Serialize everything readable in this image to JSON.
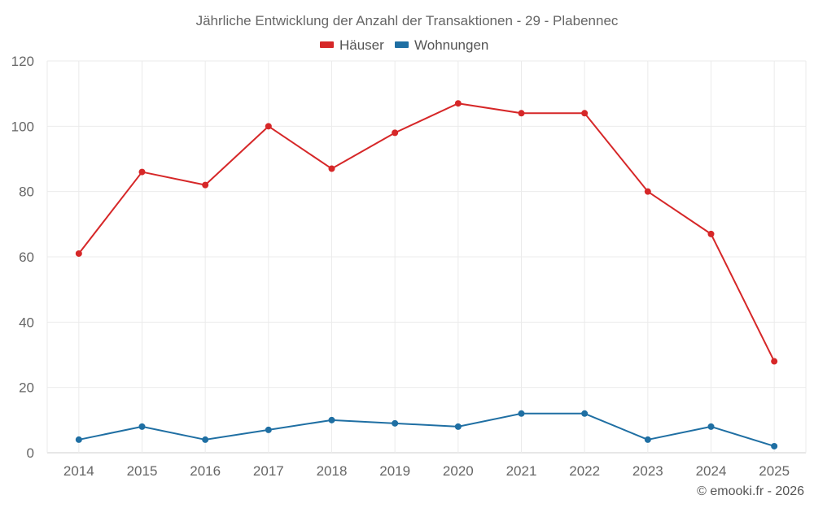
{
  "chart_data": {
    "type": "line",
    "title": "Jährliche Entwicklung der Anzahl der Transaktionen - 29 - Plabennec",
    "categories": [
      "2014",
      "2015",
      "2016",
      "2017",
      "2018",
      "2019",
      "2020",
      "2021",
      "2022",
      "2023",
      "2024",
      "2025"
    ],
    "ylim": [
      0,
      120
    ],
    "yticks": [
      "0",
      "20",
      "40",
      "60",
      "80",
      "100",
      "120"
    ],
    "grid": true,
    "legend_position": "top-center",
    "series": [
      {
        "name": "Häuser",
        "color": "#d62728",
        "values": [
          61,
          86,
          82,
          100,
          87,
          98,
          107,
          104,
          104,
          80,
          67,
          28
        ]
      },
      {
        "name": "Wohnungen",
        "color": "#1f6fa3",
        "values": [
          4,
          8,
          4,
          7,
          10,
          9,
          8,
          12,
          12,
          4,
          8,
          2
        ]
      }
    ]
  },
  "credit": "© emooki.fr - 2026"
}
